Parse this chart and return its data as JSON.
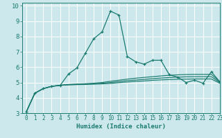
{
  "title": "",
  "xlabel": "Humidex (Indice chaleur)",
  "background_color": "#cce8ed",
  "grid_color": "#ffffff",
  "line_color": "#1a7a6e",
  "xlim": [
    -0.5,
    23
  ],
  "ylim": [
    3,
    10.2
  ],
  "yticks": [
    3,
    4,
    5,
    6,
    7,
    8,
    9,
    10
  ],
  "xticks": [
    0,
    1,
    2,
    3,
    4,
    5,
    6,
    7,
    8,
    9,
    10,
    11,
    12,
    13,
    14,
    15,
    16,
    17,
    18,
    19,
    20,
    21,
    22,
    23
  ],
  "x": [
    0,
    1,
    2,
    3,
    4,
    5,
    6,
    7,
    8,
    9,
    10,
    11,
    12,
    13,
    14,
    15,
    16,
    17,
    18,
    19,
    20,
    21,
    22,
    23
  ],
  "series": [
    [
      3.1,
      4.3,
      4.6,
      4.75,
      4.8,
      5.55,
      5.95,
      6.9,
      7.85,
      8.3,
      9.65,
      9.4,
      6.7,
      6.35,
      6.2,
      6.45,
      6.45,
      5.5,
      5.35,
      5.0,
      5.15,
      4.95,
      5.7,
      5.05
    ],
    [
      3.1,
      4.3,
      4.6,
      4.75,
      4.82,
      4.87,
      4.9,
      4.92,
      4.95,
      5.0,
      5.08,
      5.15,
      5.22,
      5.28,
      5.33,
      5.38,
      5.43,
      5.47,
      5.5,
      5.52,
      5.53,
      5.53,
      5.53,
      5.05
    ],
    [
      3.1,
      4.3,
      4.6,
      4.75,
      4.82,
      4.86,
      4.88,
      4.9,
      4.92,
      4.95,
      5.0,
      5.06,
      5.12,
      5.16,
      5.2,
      5.25,
      5.29,
      5.32,
      5.35,
      5.37,
      5.38,
      5.38,
      5.38,
      5.0
    ],
    [
      3.1,
      4.3,
      4.6,
      4.75,
      4.82,
      4.84,
      4.86,
      4.87,
      4.89,
      4.91,
      4.94,
      4.99,
      5.03,
      5.07,
      5.1,
      5.14,
      5.17,
      5.19,
      5.21,
      5.22,
      5.23,
      5.23,
      5.23,
      4.95
    ]
  ]
}
